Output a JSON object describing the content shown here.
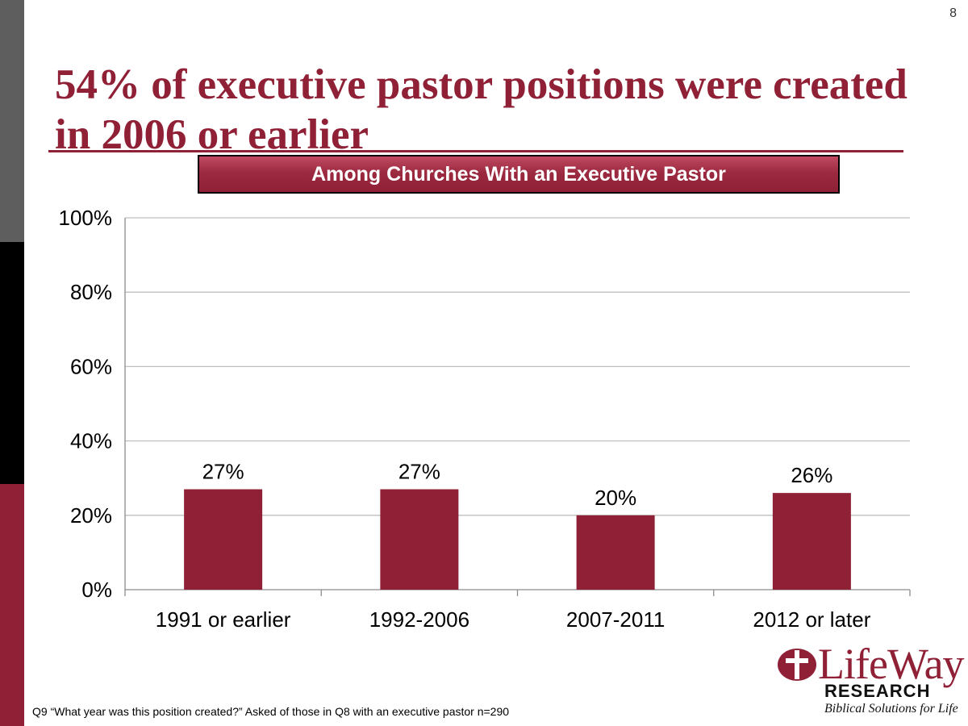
{
  "slide": {
    "number": "8",
    "title": "54% of executive pastor positions were created in 2006 or earlier",
    "subtitle": "Among Churches With an Executive Pastor",
    "footnote": "Q9 “What year was this position created?” Asked of those in Q8 with an executive pastor n=290"
  },
  "logo": {
    "word": "LifeWay",
    "research": "RESEARCH",
    "tagline": "Biblical Solutions for Life"
  },
  "colors": {
    "accent": "#8f2036",
    "side_gray": "#5e5e5e",
    "side_black": "#000000",
    "gridline": "#bfbfbf"
  },
  "chart_data": {
    "type": "bar",
    "categories": [
      "1991 or earlier",
      "1992-2006",
      "2007-2011",
      "2012 or later"
    ],
    "values": [
      27,
      27,
      20,
      26
    ],
    "data_labels": [
      "27%",
      "27%",
      "20%",
      "26%"
    ],
    "yticks": [
      "0%",
      "20%",
      "40%",
      "60%",
      "80%",
      "100%"
    ],
    "ylim": [
      0,
      100
    ],
    "grid": true,
    "legend": "none",
    "bar_color": "#8f2036"
  }
}
